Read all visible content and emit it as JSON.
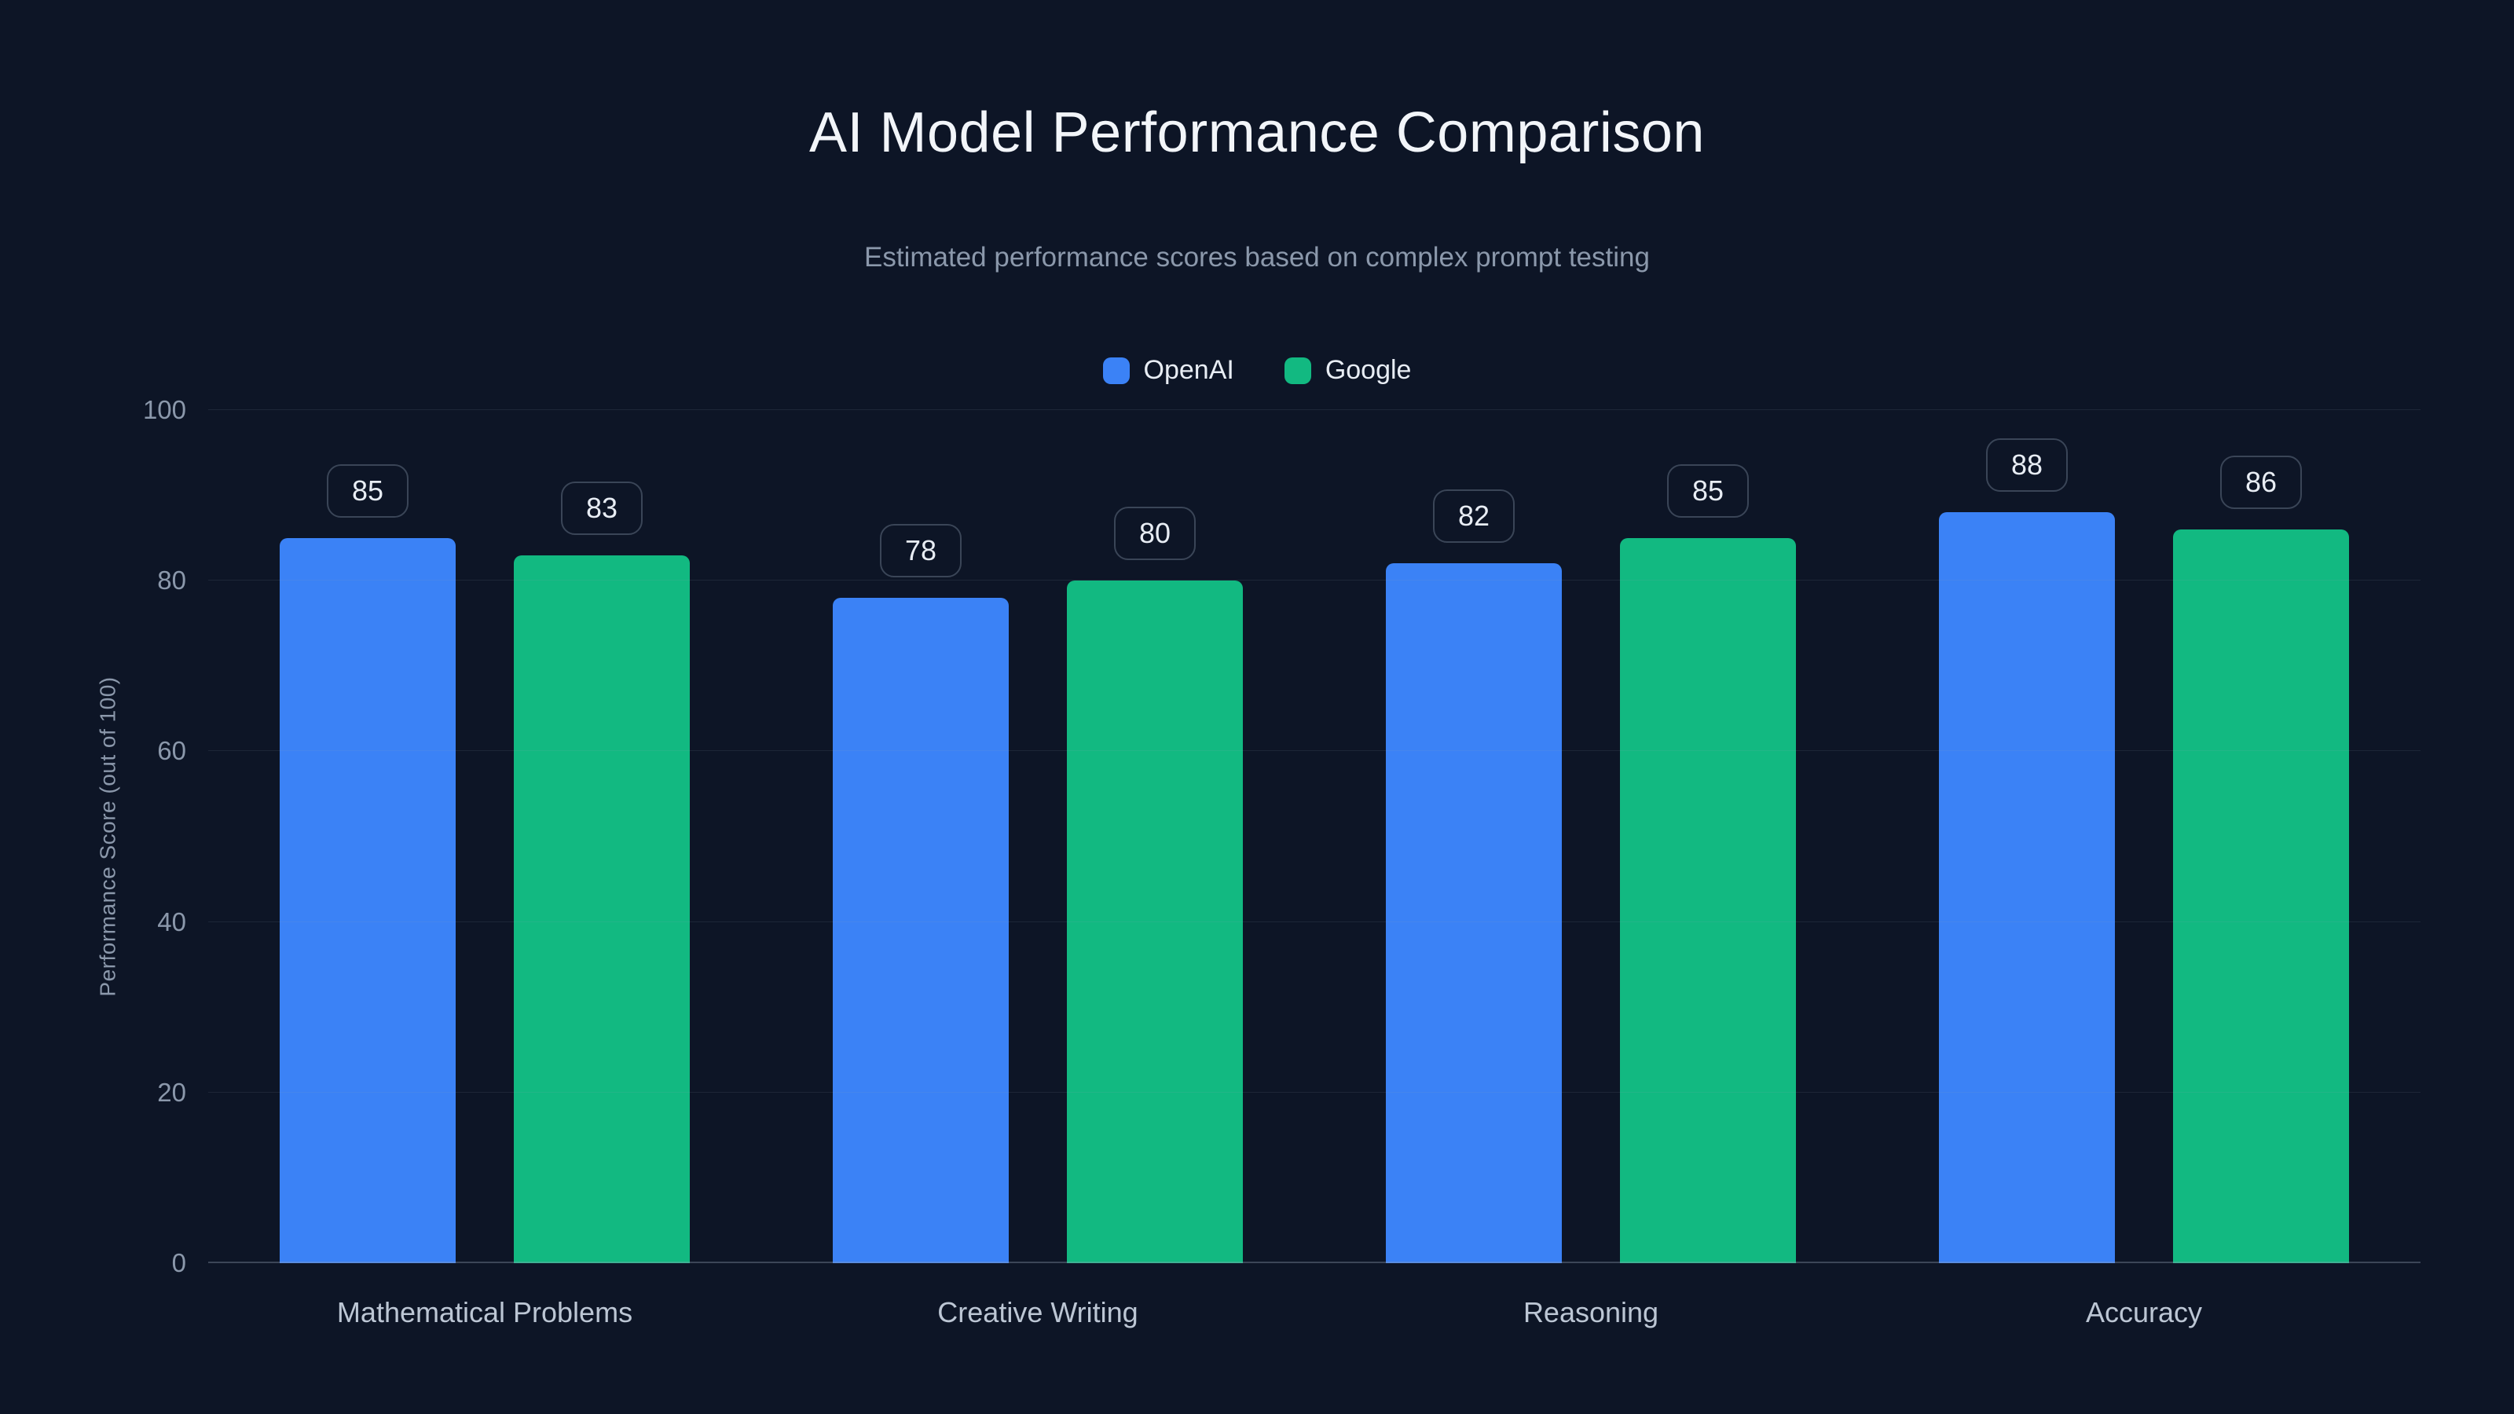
{
  "page": {
    "background_color": "#0d1526"
  },
  "header": {
    "title": "AI Model Performance Comparison",
    "subtitle": "Estimated performance scores based on complex prompt testing"
  },
  "chart_data": {
    "type": "bar",
    "title": "AI Model Performance Comparison",
    "subtitle": "Estimated performance scores based on complex prompt testing",
    "categories": [
      "Mathematical Problems",
      "Creative Writing",
      "Reasoning",
      "Accuracy"
    ],
    "series": [
      {
        "name": "OpenAI",
        "color": "#3b82f6",
        "values": [
          85,
          78,
          82,
          88
        ]
      },
      {
        "name": "Google",
        "color": "#12b981",
        "values": [
          83,
          80,
          85,
          86
        ]
      }
    ],
    "xlabel": "",
    "ylabel": "Performance Score (out of 100)",
    "ylim": [
      0,
      100
    ],
    "yticks": [
      0,
      20,
      40,
      60,
      80,
      100
    ],
    "grid": true,
    "legend_position": "top",
    "value_labels": true
  }
}
